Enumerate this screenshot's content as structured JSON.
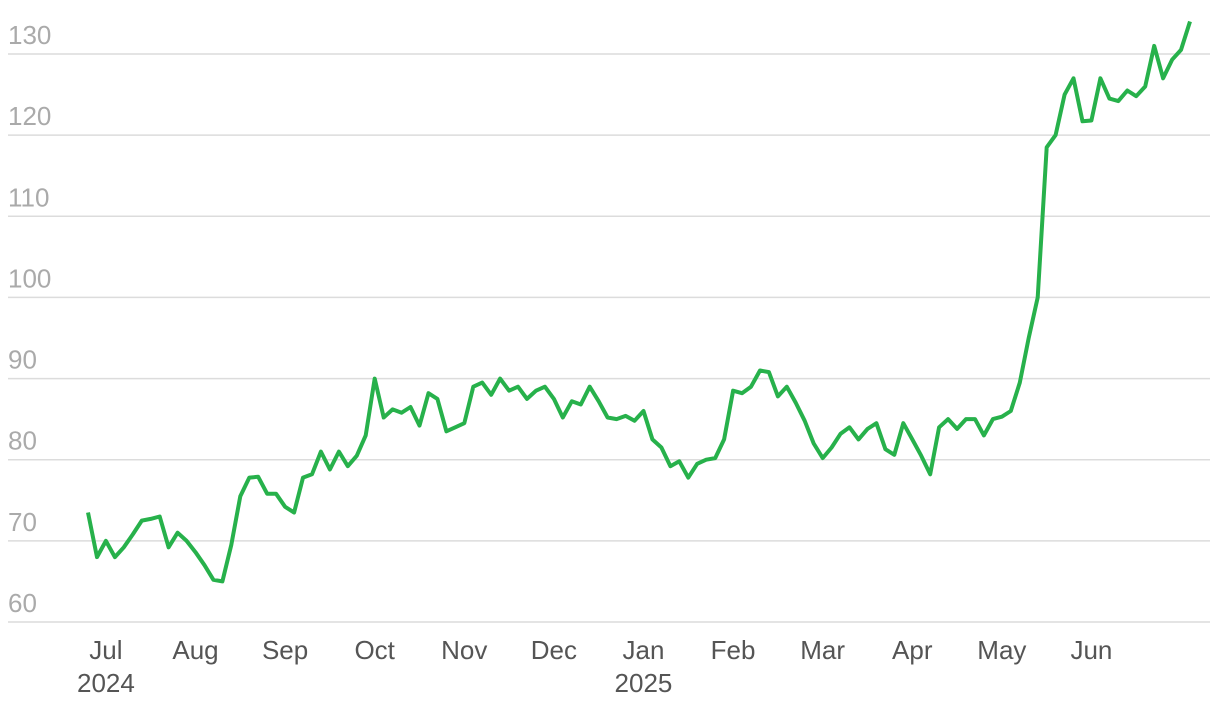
{
  "chart_data": {
    "type": "line",
    "color": "#27b14b",
    "categories": [
      null,
      null,
      "Jul\n2024",
      null,
      null,
      null,
      null,
      null,
      null,
      null,
      null,
      null,
      "Aug",
      null,
      null,
      null,
      null,
      null,
      null,
      null,
      null,
      null,
      "Sep",
      null,
      null,
      null,
      null,
      null,
      null,
      null,
      null,
      null,
      "Oct",
      null,
      null,
      null,
      null,
      null,
      null,
      null,
      null,
      null,
      "Nov",
      null,
      null,
      null,
      null,
      null,
      null,
      null,
      null,
      null,
      "Dec",
      null,
      null,
      null,
      null,
      null,
      null,
      null,
      null,
      null,
      "Jan\n2025",
      null,
      null,
      null,
      null,
      null,
      null,
      null,
      null,
      null,
      "Feb",
      null,
      null,
      null,
      null,
      null,
      null,
      null,
      null,
      null,
      "Mar",
      null,
      null,
      null,
      null,
      null,
      null,
      null,
      null,
      null,
      "Apr",
      null,
      null,
      null,
      null,
      null,
      null,
      null,
      null,
      null,
      "May",
      null,
      null,
      null,
      null,
      null,
      null,
      null,
      null,
      null,
      "Jun",
      null,
      null,
      null,
      null,
      null,
      null,
      null,
      null,
      null,
      null,
      null
    ],
    "values": [
      73.5,
      68,
      70,
      68,
      69.2,
      70.8,
      72.5,
      72.7,
      73,
      69.2,
      71,
      70,
      68.6,
      67,
      65.2,
      65,
      69.5,
      75.5,
      77.8,
      77.9,
      75.8,
      75.8,
      74.2,
      73.5,
      77.8,
      78.2,
      81,
      78.8,
      81,
      79.2,
      80.5,
      83,
      90,
      85.2,
      86.2,
      85.8,
      86.5,
      84.2,
      88.2,
      87.5,
      83.5,
      84,
      84.5,
      89,
      89.5,
      88,
      90,
      88.5,
      89,
      87.5,
      88.5,
      89,
      87.5,
      85.2,
      87.2,
      86.8,
      89,
      87.2,
      85.2,
      85,
      85.4,
      84.8,
      86,
      82.5,
      81.5,
      79.2,
      79.8,
      77.8,
      79.5,
      80,
      80.2,
      82.5,
      88.5,
      88.2,
      89,
      91,
      90.8,
      87.8,
      89,
      87,
      84.8,
      82,
      80.2,
      81.5,
      83.2,
      84,
      82.5,
      83.8,
      84.5,
      81.3,
      80.6,
      84.5,
      82.5,
      80.5,
      78.2,
      84,
      85,
      83.8,
      85,
      85,
      83,
      85,
      85.3,
      86,
      89.5,
      95,
      100,
      118.5,
      120,
      125,
      127,
      121.7,
      121.8,
      127,
      124.5,
      124.2,
      125.5,
      124.8,
      126,
      131,
      127,
      129.3,
      130.5,
      134
    ],
    "ylim": [
      58,
      136
    ],
    "yticks": [
      60,
      70,
      80,
      90,
      100,
      110,
      120,
      130
    ],
    "grid": true
  }
}
